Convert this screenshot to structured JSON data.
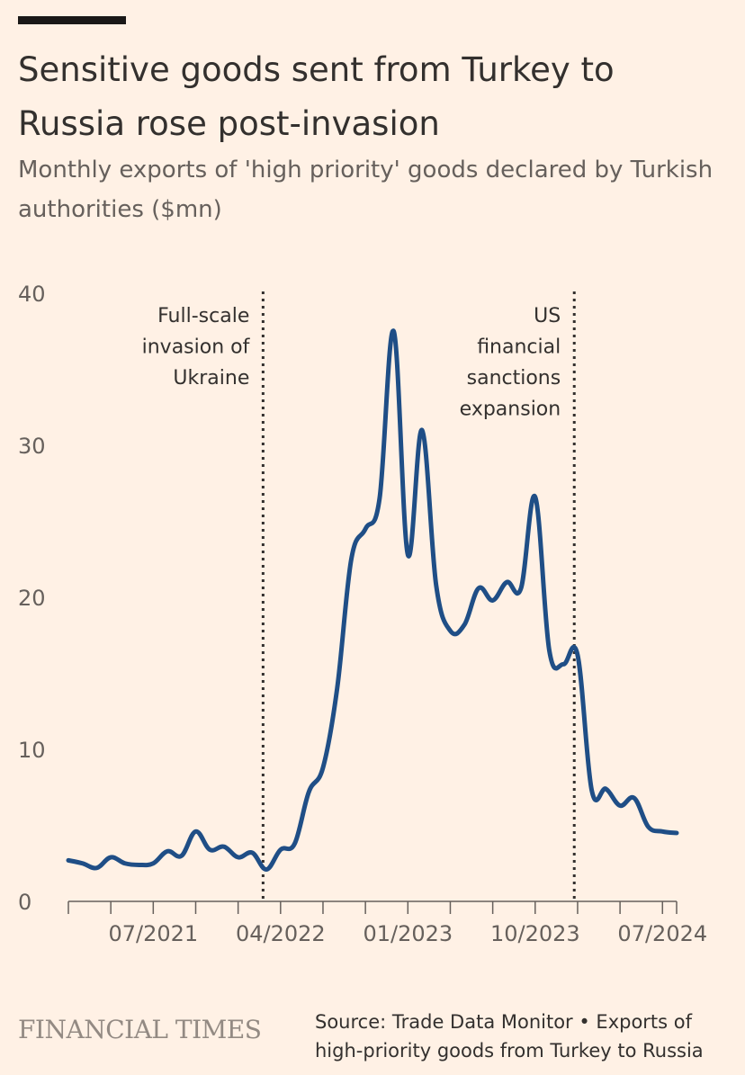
{
  "header": {
    "title": "Sensitive goods sent from Turkey to Russia rose post-invasion",
    "subtitle": "Monthly exports of 'high priority' goods declared by Turkish authorities ($mn)"
  },
  "footer": {
    "brand": "FINANCIAL TIMES",
    "source_line1": "Source: Trade Data Monitor • Exports of",
    "source_line2": "high-priority goods from Turkey to Russia"
  },
  "colors": {
    "background": "#FFF1E5",
    "line": "#1F4E86",
    "text": "#33302E",
    "muted": "#66605C"
  },
  "chart_data": {
    "type": "line",
    "title": "Sensitive goods sent from Turkey to Russia rose post-invasion",
    "subtitle": "Monthly exports of 'high priority' goods declared by Turkish authorities ($mn)",
    "xlabel": "",
    "ylabel": "$mn",
    "ylim": [
      0,
      40
    ],
    "yticks": [
      0,
      10,
      20,
      30,
      40
    ],
    "x_ticks": [
      "07/2021",
      "04/2022",
      "01/2023",
      "10/2023",
      "07/2024"
    ],
    "x_start": "01/2021",
    "x_end": "08/2024",
    "grid": false,
    "series": [
      {
        "name": "High-priority goods exports",
        "x": [
          "01/2021",
          "02/2021",
          "03/2021",
          "04/2021",
          "05/2021",
          "06/2021",
          "07/2021",
          "08/2021",
          "09/2021",
          "10/2021",
          "11/2021",
          "12/2021",
          "01/2022",
          "02/2022",
          "03/2022",
          "04/2022",
          "05/2022",
          "06/2022",
          "07/2022",
          "08/2022",
          "09/2022",
          "10/2022",
          "11/2022",
          "12/2022",
          "01/2023",
          "02/2023",
          "03/2023",
          "04/2023",
          "05/2023",
          "06/2023",
          "07/2023",
          "08/2023",
          "09/2023",
          "10/2023",
          "11/2023",
          "12/2023",
          "01/2024",
          "02/2024",
          "03/2024",
          "04/2024",
          "05/2024",
          "06/2024",
          "07/2024",
          "08/2024"
        ],
        "values": [
          2.7,
          2.5,
          2.2,
          2.9,
          2.5,
          2.4,
          2.5,
          3.3,
          3.0,
          4.6,
          3.4,
          3.6,
          2.9,
          3.2,
          2.1,
          3.4,
          3.8,
          7.2,
          8.8,
          14.0,
          22.5,
          24.5,
          26.5,
          37.5,
          22.8,
          31.0,
          20.8,
          17.8,
          18.2,
          20.6,
          19.8,
          21.0,
          20.6,
          26.6,
          16.5,
          15.6,
          16.2,
          7.3,
          7.4,
          6.3,
          6.8,
          4.9,
          4.6,
          4.5
        ]
      }
    ],
    "annotations": [
      {
        "x": "02/2022",
        "label_lines": [
          "Full-scale",
          "invasion of",
          "Ukraine"
        ]
      },
      {
        "x": "12/2023",
        "label_lines": [
          "US",
          "financial",
          "sanctions",
          "expansion"
        ]
      }
    ]
  }
}
